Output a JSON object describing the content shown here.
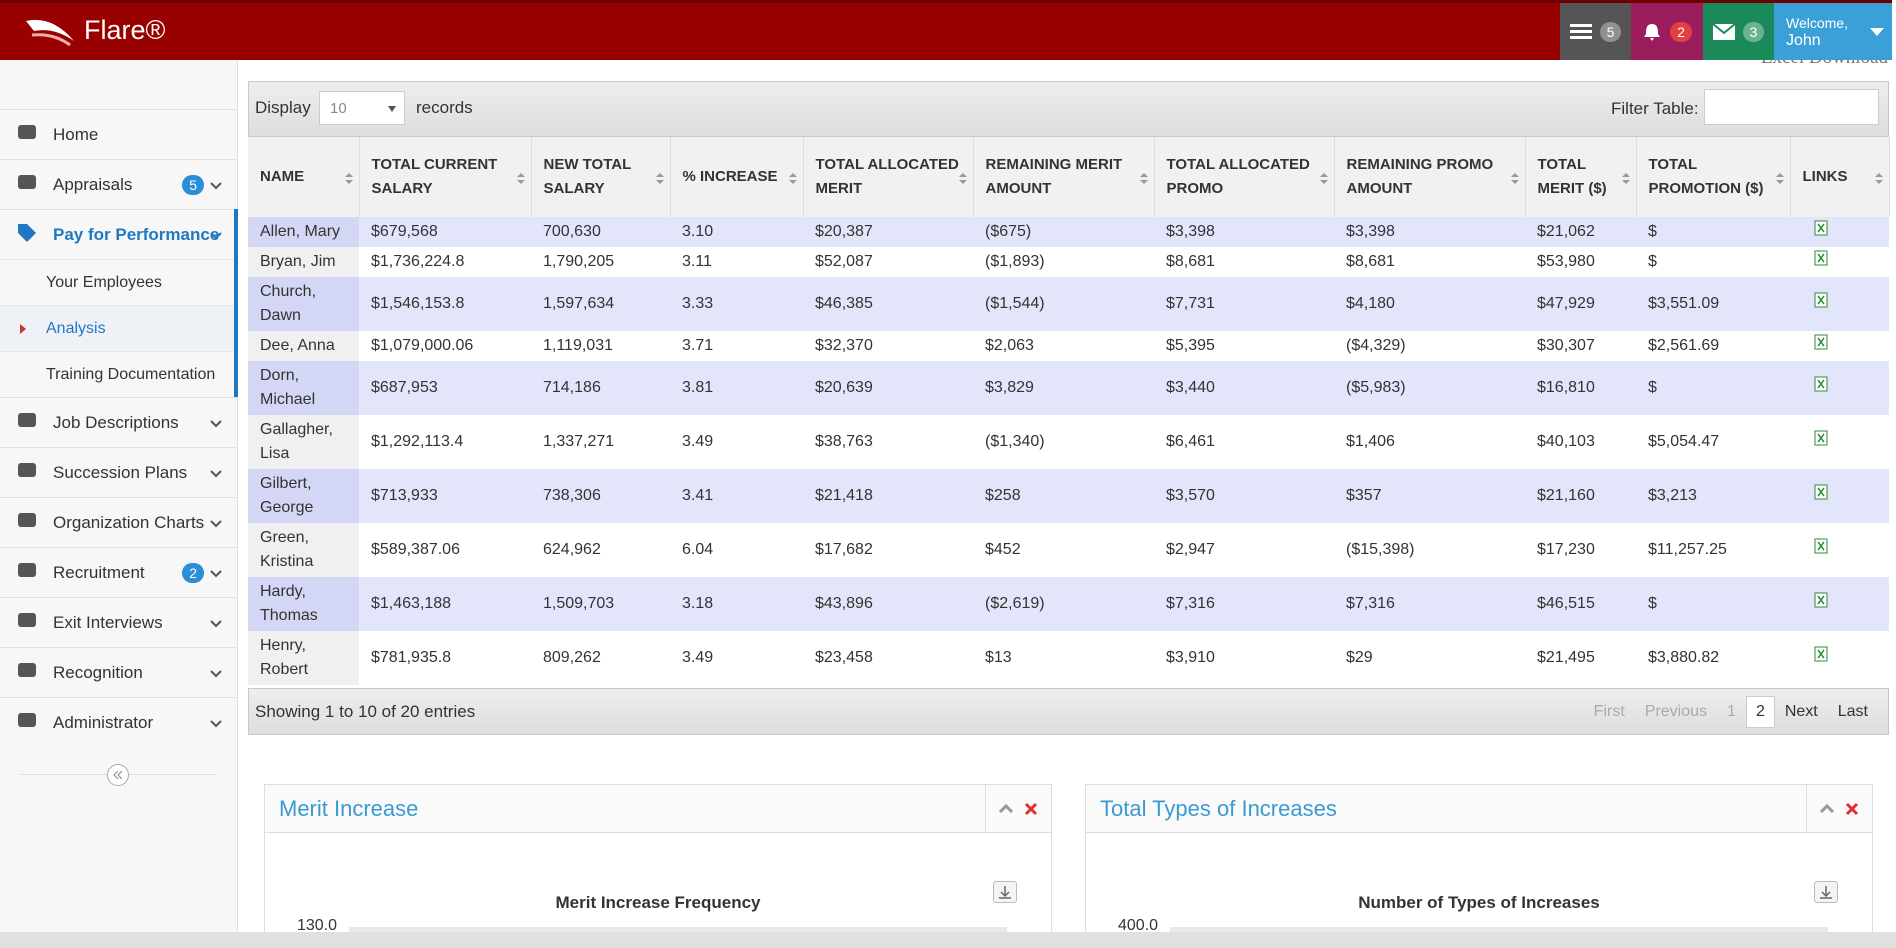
{
  "header": {
    "brand": "Flare®",
    "badges": [
      5,
      2,
      3
    ],
    "welcome": "Welcome,",
    "user": "John",
    "excel": "Excel Download"
  },
  "sidebar": {
    "items": [
      {
        "label": "Home"
      },
      {
        "label": "Appraisals",
        "badge": 5
      },
      {
        "label": "Pay for Performance",
        "children": [
          "Your Employees",
          "Analysis",
          "Training Documentation"
        ]
      },
      {
        "label": "Job Descriptions"
      },
      {
        "label": "Succession Plans"
      },
      {
        "label": "Organization Charts"
      },
      {
        "label": "Recruitment",
        "badge": 2
      },
      {
        "label": "Exit Interviews"
      },
      {
        "label": "Recognition"
      },
      {
        "label": "Administrator"
      }
    ]
  },
  "table": {
    "display": "Display",
    "length": "10",
    "records": "records",
    "filter": "Filter Table:",
    "columns": [
      "NAME",
      "TOTAL CURRENT SALARY",
      "NEW TOTAL SALARY",
      "% INCREASE",
      "TOTAL ALLOCATED MERIT",
      "REMAINING MERIT AMOUNT",
      "TOTAL ALLOCATED PROMO",
      "REMAINING PROMO AMOUNT",
      "TOTAL MERIT ($)",
      "TOTAL PROMOTION ($)",
      "LINKS"
    ],
    "rows": [
      [
        "Allen, Mary",
        "$679,568",
        "700,630",
        "3.10",
        "$20,387",
        "($675)",
        "$3,398",
        "$3,398",
        "$21,062",
        "$"
      ],
      [
        "Bryan, Jim",
        "$1,736,224.8",
        "1,790,205",
        "3.11",
        "$52,087",
        "($1,893)",
        "$8,681",
        "$8,681",
        "$53,980",
        "$"
      ],
      [
        "Church, Dawn",
        "$1,546,153.8",
        "1,597,634",
        "3.33",
        "$46,385",
        "($1,544)",
        "$7,731",
        "$4,180",
        "$47,929",
        "$3,551.09"
      ],
      [
        "Dee, Anna",
        "$1,079,000.06",
        "1,119,031",
        "3.71",
        "$32,370",
        "$2,063",
        "$5,395",
        "($4,329)",
        "$30,307",
        "$2,561.69"
      ],
      [
        "Dorn, Michael",
        "$687,953",
        "714,186",
        "3.81",
        "$20,639",
        "$3,829",
        "$3,440",
        "($5,983)",
        "$16,810",
        "$"
      ],
      [
        "Gallagher, Lisa",
        "$1,292,113.4",
        "1,337,271",
        "3.49",
        "$38,763",
        "($1,340)",
        "$6,461",
        "$1,406",
        "$40,103",
        "$5,054.47"
      ],
      [
        "Gilbert, George",
        "$713,933",
        "738,306",
        "3.41",
        "$21,418",
        "$258",
        "$3,570",
        "$357",
        "$21,160",
        "$3,213"
      ],
      [
        "Green, Kristina",
        "$589,387.06",
        "624,962",
        "6.04",
        "$17,682",
        "$452",
        "$2,947",
        "($15,398)",
        "$17,230",
        "$11,257.25"
      ],
      [
        "Hardy, Thomas",
        "$1,463,188",
        "1,509,703",
        "3.18",
        "$43,896",
        "($2,619)",
        "$7,316",
        "$7,316",
        "$46,515",
        "$"
      ],
      [
        "Henry, Robert",
        "$781,935.8",
        "809,262",
        "3.49",
        "$23,458",
        "$13",
        "$3,910",
        "$29",
        "$21,495",
        "$3,880.82"
      ]
    ],
    "info": "Showing 1 to 10 of 20 entries",
    "pager": [
      "First",
      "Previous",
      "1",
      "2",
      "Next",
      "Last"
    ]
  },
  "panels": [
    {
      "title": "Merit Increase",
      "chart_title": "Merit Increase Frequency",
      "ytop": "130.0"
    },
    {
      "title": "Total Types of Increases",
      "chart_title": "Number of Types of Increases",
      "ytop": "400.0"
    }
  ]
}
